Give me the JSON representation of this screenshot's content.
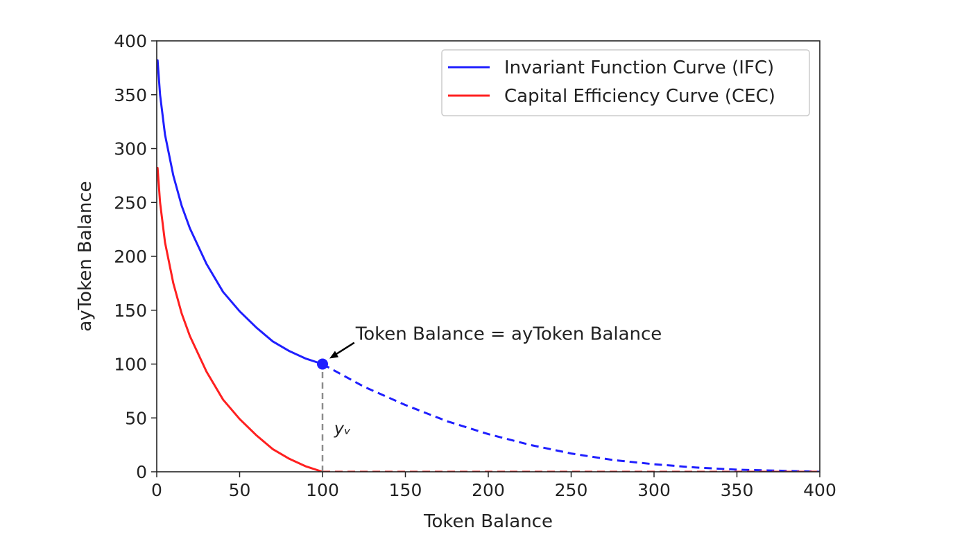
{
  "chart_data": {
    "type": "line",
    "xlabel": "Token Balance",
    "ylabel": "ayToken Balance",
    "xlim": [
      0,
      400
    ],
    "ylim": [
      0,
      400
    ],
    "xticks": [
      0,
      50,
      100,
      150,
      200,
      250,
      300,
      350,
      400
    ],
    "yticks": [
      0,
      50,
      100,
      150,
      200,
      250,
      300,
      350,
      400
    ],
    "grid": false,
    "legend_position": "top-right",
    "series": [
      {
        "name": "Invariant Function Curve (IFC)",
        "color": "#1f1fff",
        "style": "solid",
        "x": [
          0.5,
          2,
          5,
          10,
          15,
          20,
          30,
          40,
          50,
          60,
          70,
          80,
          90,
          100
        ],
        "y": [
          382,
          350,
          313,
          275,
          247,
          226,
          193,
          167,
          149,
          134,
          121,
          112,
          105,
          100
        ]
      },
      {
        "name": "",
        "color": "#1f1fff",
        "style": "dashed",
        "x": [
          100,
          125,
          150,
          175,
          200,
          225,
          250,
          275,
          300,
          325,
          350,
          375,
          400
        ],
        "y": [
          100,
          79,
          62,
          47,
          35,
          25,
          17,
          11,
          7,
          4,
          2,
          1,
          0
        ]
      },
      {
        "name": "Capital Efficiency Curve (CEC)",
        "color": "#ff2020",
        "style": "solid",
        "x": [
          0.5,
          2,
          5,
          10,
          15,
          20,
          30,
          40,
          50,
          60,
          70,
          80,
          90,
          100
        ],
        "y": [
          282,
          250,
          213,
          175,
          147,
          126,
          93,
          67,
          49,
          34,
          21,
          12,
          5,
          0
        ]
      },
      {
        "name": "",
        "color": "#ff2020",
        "style": "dashed",
        "x": [
          100,
          400
        ],
        "y": [
          0,
          0
        ]
      }
    ],
    "marker": {
      "x": 100,
      "y": 100,
      "color": "#1f1fff"
    },
    "annotation": {
      "text": "Token Balance = ayToken Balance",
      "point": [
        100,
        100
      ],
      "text_at": [
        120,
        125
      ]
    },
    "vline": {
      "x": 100,
      "y_from": 0,
      "y_to": 100,
      "color": "#8c8c8c",
      "style": "dashed"
    },
    "vline_label": {
      "text": "yᵥ",
      "at": [
        107,
        35
      ]
    }
  }
}
